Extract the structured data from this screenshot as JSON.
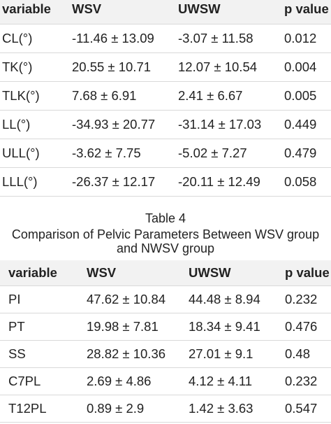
{
  "table_top": {
    "headers": [
      "variable",
      "WSV",
      "UWSW",
      "p value"
    ],
    "rows": [
      [
        "CL(°)",
        "-11.46 ± 13.09",
        "-3.07 ± 11.58",
        "0.012"
      ],
      [
        "TK(°)",
        "20.55 ± 10.71",
        "12.07 ± 10.54",
        "0.004"
      ],
      [
        "TLK(°)",
        "7.68 ± 6.91",
        "2.41 ± 6.67",
        "0.005"
      ],
      [
        "LL(°)",
        "-34.93 ± 20.77",
        "-31.14 ± 17.03",
        "0.449"
      ],
      [
        "ULL(°)",
        "-3.62 ± 7.75",
        "-5.02 ± 7.27",
        "0.479"
      ],
      [
        "LLL(°)",
        "-26.37 ± 12.17",
        "-20.11 ± 12.49",
        "0.058"
      ]
    ]
  },
  "caption": {
    "label": "Table 4",
    "title_line1": "Comparison of Pelvic Parameters Between WSV group",
    "title_line2": "and NWSV group"
  },
  "table_bottom": {
    "headers": [
      "variable",
      "WSV",
      "UWSW",
      "p value"
    ],
    "rows": [
      [
        "PI",
        "47.62 ± 10.84",
        "44.48 ± 8.94",
        "0.232"
      ],
      [
        "PT",
        "19.98 ± 7.81",
        "18.34 ± 9.41",
        "0.476"
      ],
      [
        "SS",
        "28.82 ± 10.36",
        "27.01 ± 9.1",
        "0.48"
      ],
      [
        "C7PL",
        "2.69 ± 4.86",
        "4.12 ± 4.11",
        "0.232"
      ],
      [
        "T12PL",
        "0.89 ± 2.9",
        "1.42 ± 3.63",
        "0.547"
      ]
    ]
  }
}
